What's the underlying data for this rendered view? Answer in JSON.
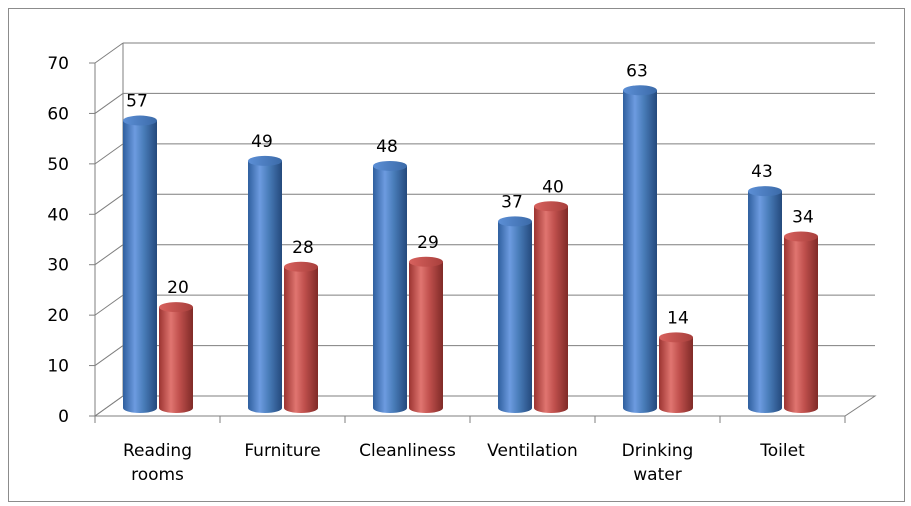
{
  "chart_data": {
    "type": "bar",
    "title": "",
    "xlabel": "",
    "ylabel": "",
    "ylim": [
      0,
      70
    ],
    "ytick_step": 10,
    "grid": true,
    "legend": "none",
    "categories": [
      "Reading rooms",
      "Furniture",
      "Cleanliness",
      "Ventilation",
      "Drinking water",
      "Toilet"
    ],
    "category_lines": [
      [
        "Reading",
        "rooms"
      ],
      [
        "Furniture"
      ],
      [
        "Cleanliness"
      ],
      [
        "Ventilation"
      ],
      [
        "Drinking",
        "water"
      ],
      [
        "Toilet"
      ]
    ],
    "series": [
      {
        "values": [
          57,
          49,
          48,
          37,
          63,
          43
        ],
        "color": "#4a7ebb"
      },
      {
        "values": [
          20,
          28,
          29,
          40,
          14,
          34
        ],
        "color": "#be4b48"
      }
    ]
  }
}
